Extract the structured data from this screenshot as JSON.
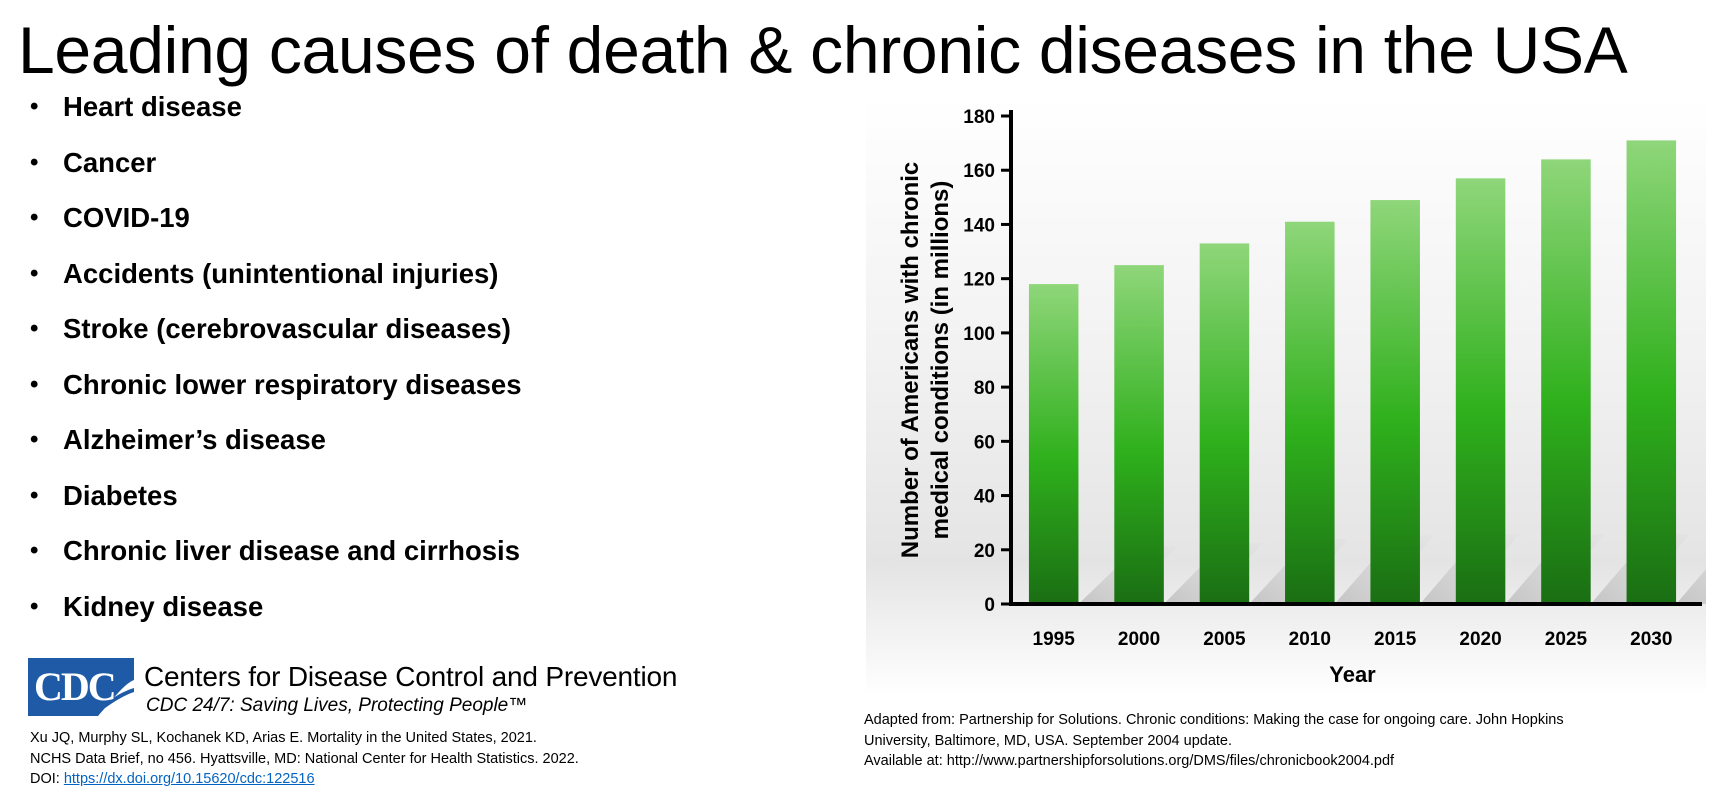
{
  "slide": {
    "title": "Leading causes of death & chronic diseases in the USA",
    "causes": [
      "Heart disease",
      "Cancer",
      "COVID-19",
      "Accidents (unintentional injuries)",
      "Stroke (cerebrovascular diseases)",
      "Chronic lower respiratory diseases",
      "Alzheimer’s disease",
      "Diabetes",
      "Chronic liver disease and cirrhosis",
      "Kidney disease"
    ],
    "bullet": "•"
  },
  "cdc": {
    "logo_text": "CDC",
    "name": "Centers for Disease Control and Prevention",
    "tagline": "CDC 24/7: Saving Lives, Protecting People™",
    "brand_color": "#1f5aa6"
  },
  "reference": {
    "line1": "Xu JQ, Murphy SL, Kochanek KD, Arias E. Mortality in the United States, 2021.",
    "line2": "NCHS Data Brief, no 456. Hyattsville, MD: National Center for Health Statistics. 2022.",
    "doi_prefix": "DOI: ",
    "doi_link": "https://dx.doi.org/10.15620/cdc:122516"
  },
  "adapted": {
    "line1": "Adapted from: Partnership for Solutions. Chronic conditions: Making the case for ongoing care. John Hopkins",
    "line2": " University, Baltimore, MD, USA. September 2004 update.",
    "line3": "Available at: http://www.partnershipforsolutions.org/DMS/files/chronicbook2004.pdf"
  },
  "chart_data": {
    "type": "bar",
    "categories": [
      "1995",
      "2000",
      "2005",
      "2010",
      "2015",
      "2020",
      "2025",
      "2030"
    ],
    "values": [
      118,
      125,
      133,
      141,
      149,
      157,
      164,
      171
    ],
    "title": "",
    "xlabel": "Year",
    "ylabel": "Number of Americans with chronic medical conditions (in millions)",
    "ylabel_lines": [
      "Number of Americans with chronic",
      "medical conditions (in millions)"
    ],
    "ylim": [
      0,
      180
    ],
    "yticks": [
      0,
      20,
      40,
      60,
      80,
      100,
      120,
      140,
      160,
      180
    ],
    "grid": false,
    "bar_color_top": "#8fd67a",
    "bar_color_mid": "#2fb01c",
    "bar_color_bottom": "#1a6e13"
  }
}
